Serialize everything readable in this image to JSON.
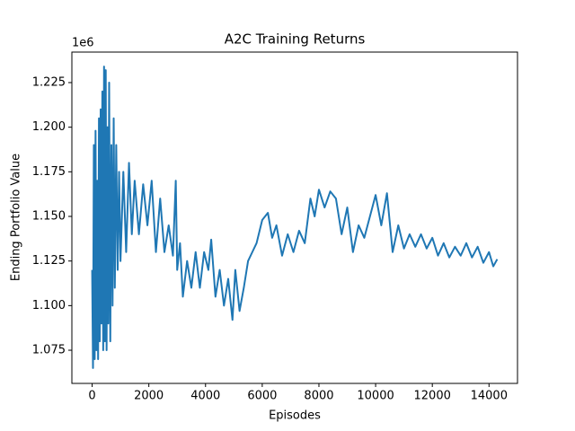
{
  "chart_data": {
    "type": "line",
    "title": "A2C Training Returns",
    "x_label": "Episodes",
    "y_label": "Ending Portfolio Value",
    "y_offset_text": "1e6",
    "xlim": [
      -715,
      15005
    ],
    "ylim": [
      1.0564,
      1.2421
    ],
    "xticks": [
      0,
      2000,
      4000,
      6000,
      8000,
      10000,
      12000,
      14000
    ],
    "yticks": [
      1.075,
      {
        "value": 1.1,
        "label": "1.100"
      },
      1.125,
      {
        "value": 1.15,
        "label": "1.150"
      },
      1.175,
      {
        "value": 1.2,
        "label": "1.200"
      },
      1.225
    ],
    "grid": false,
    "series": [
      {
        "color": "#1f77b4",
        "x": [
          0,
          30,
          60,
          90,
          120,
          150,
          180,
          210,
          240,
          270,
          300,
          330,
          360,
          390,
          420,
          450,
          480,
          510,
          540,
          570,
          600,
          640,
          680,
          720,
          760,
          800,
          850,
          900,
          950,
          1000,
          1100,
          1200,
          1300,
          1400,
          1500,
          1650,
          1800,
          1950,
          2100,
          2250,
          2400,
          2550,
          2700,
          2850,
          2950,
          3000,
          3100,
          3200,
          3350,
          3500,
          3650,
          3800,
          3950,
          4100,
          4200,
          4350,
          4500,
          4650,
          4800,
          4950,
          5050,
          5200,
          5350,
          5500,
          5650,
          5800,
          6000,
          6200,
          6350,
          6500,
          6700,
          6900,
          7100,
          7300,
          7500,
          7700,
          7850,
          8000,
          8200,
          8400,
          8600,
          8800,
          9000,
          9200,
          9400,
          9600,
          9800,
          10000,
          10200,
          10400,
          10600,
          10800,
          11000,
          11200,
          11400,
          11600,
          11800,
          12000,
          12200,
          12400,
          12600,
          12800,
          13000,
          13200,
          13400,
          13600,
          13800,
          14000,
          14150,
          14290
        ],
        "values": [
          1.12,
          1.065,
          1.19,
          1.07,
          1.198,
          1.075,
          1.17,
          1.07,
          1.205,
          1.08,
          1.21,
          1.09,
          1.22,
          1.075,
          1.234,
          1.08,
          1.232,
          1.075,
          1.2,
          1.09,
          1.225,
          1.08,
          1.19,
          1.1,
          1.205,
          1.11,
          1.19,
          1.12,
          1.175,
          1.125,
          1.175,
          1.13,
          1.18,
          1.14,
          1.17,
          1.14,
          1.168,
          1.145,
          1.17,
          1.13,
          1.16,
          1.13,
          1.145,
          1.128,
          1.17,
          1.12,
          1.135,
          1.105,
          1.125,
          1.11,
          1.13,
          1.11,
          1.13,
          1.12,
          1.137,
          1.105,
          1.12,
          1.1,
          1.115,
          1.092,
          1.12,
          1.097,
          1.11,
          1.125,
          1.13,
          1.135,
          1.148,
          1.152,
          1.138,
          1.145,
          1.128,
          1.14,
          1.13,
          1.142,
          1.135,
          1.16,
          1.15,
          1.165,
          1.155,
          1.164,
          1.16,
          1.14,
          1.155,
          1.13,
          1.145,
          1.138,
          1.15,
          1.162,
          1.145,
          1.163,
          1.13,
          1.145,
          1.132,
          1.14,
          1.133,
          1.14,
          1.132,
          1.138,
          1.128,
          1.135,
          1.127,
          1.133,
          1.128,
          1.135,
          1.127,
          1.133,
          1.124,
          1.13,
          1.122,
          1.126
        ]
      }
    ]
  }
}
